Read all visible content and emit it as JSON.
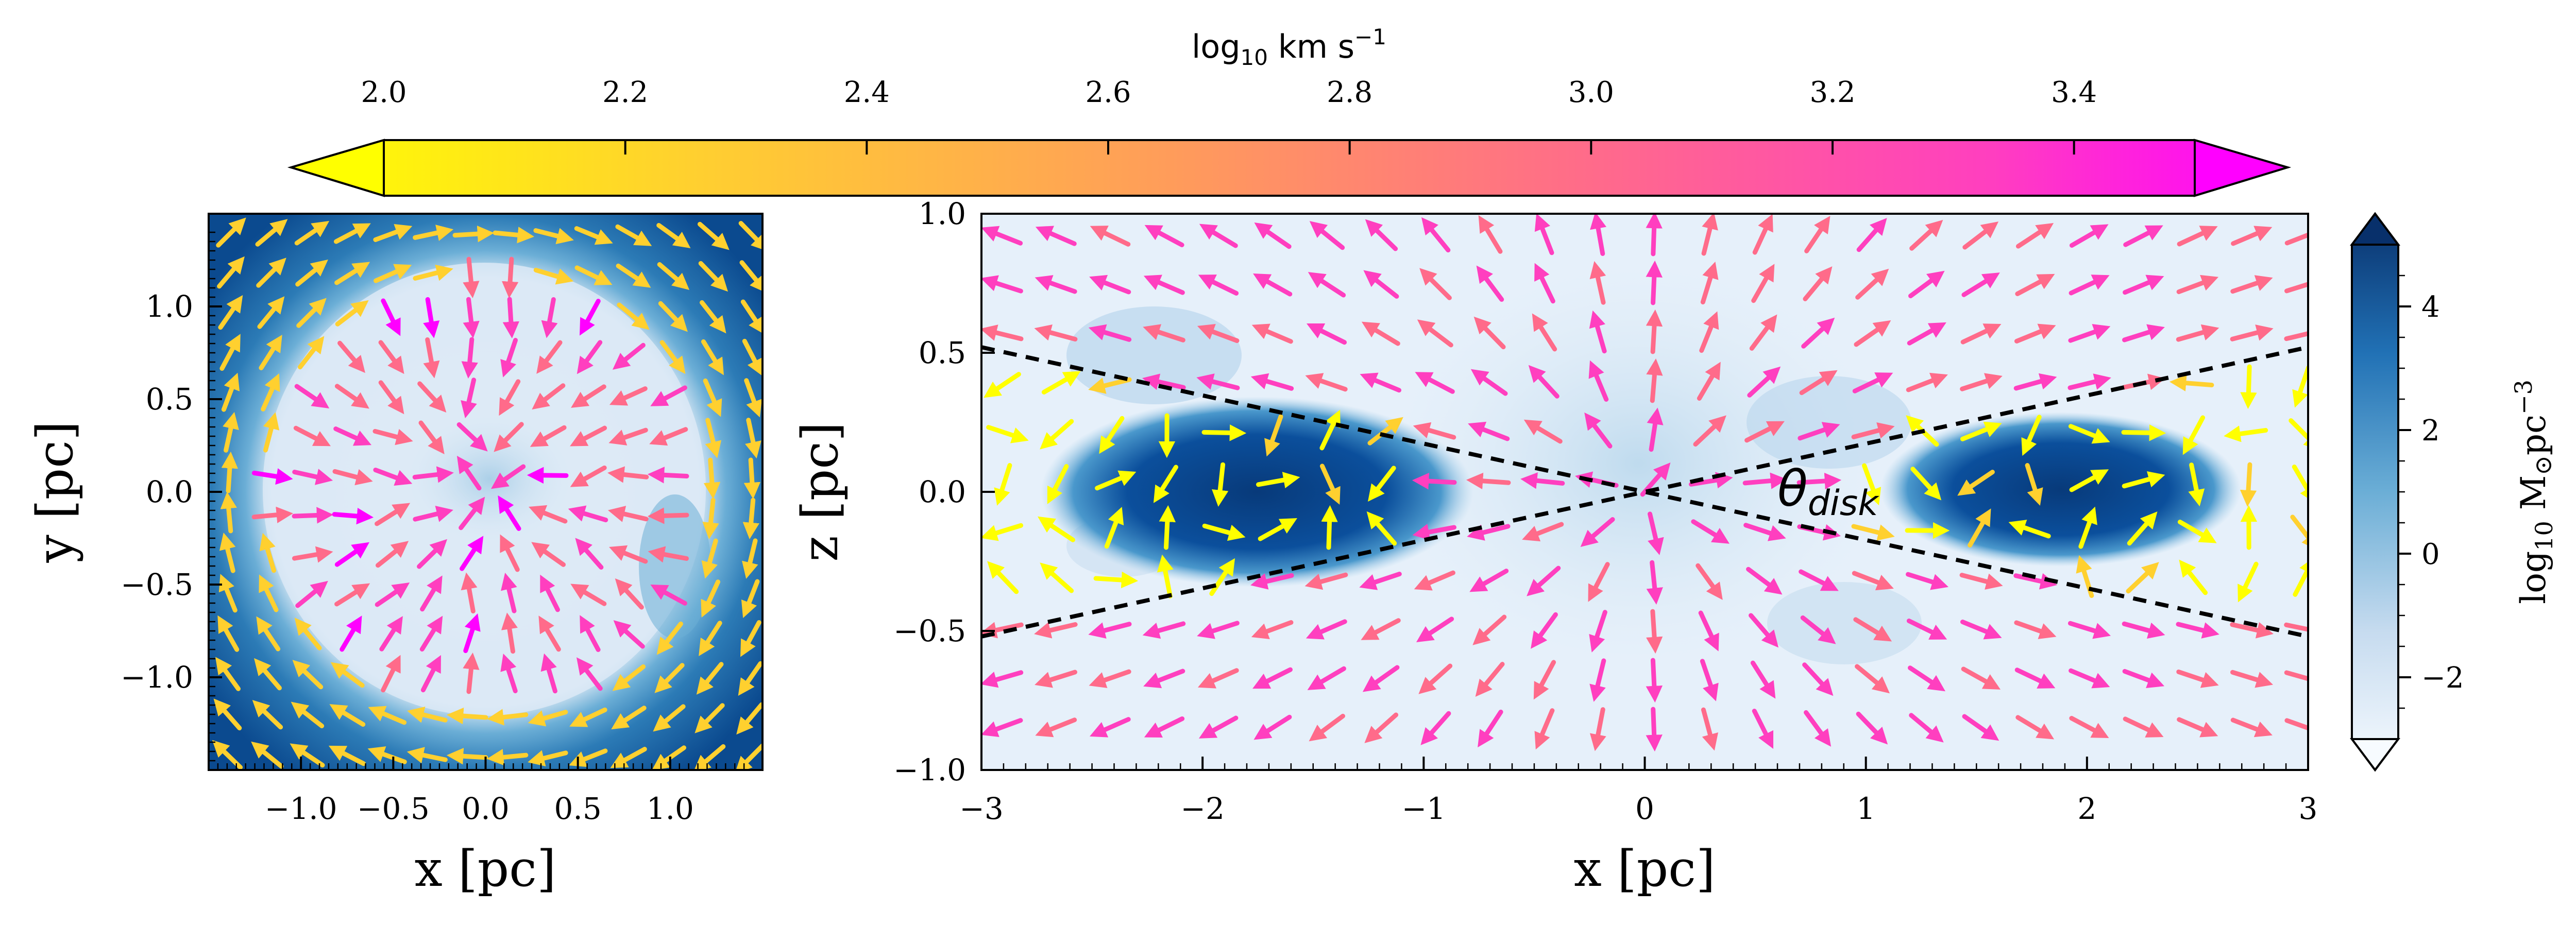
{
  "chart_data": [
    {
      "type": "colorbar",
      "role": "velocity-colorbar",
      "orientation": "horizontal",
      "label_main": "log",
      "label_sub": "10",
      "label_unit": " km s",
      "label_sup": "−1",
      "range": [
        2.0,
        3.5
      ],
      "ticks": [
        "2.0",
        "2.2",
        "2.4",
        "2.6",
        "2.8",
        "3.0",
        "3.2",
        "3.4"
      ],
      "tick_values": [
        2.0,
        2.2,
        2.4,
        2.6,
        2.8,
        3.0,
        3.2,
        3.4
      ],
      "cmap": [
        "#ffff00",
        "#ffd02f",
        "#ff9a5c",
        "#ff6b8a",
        "#ff3fbf",
        "#ff00ff"
      ],
      "extend": "both"
    },
    {
      "type": "quiver-map",
      "role": "face-on-panel",
      "xlabel": "x [pc]",
      "ylabel": "y [pc]",
      "xlim": [
        -1.5,
        1.5
      ],
      "ylim": [
        -1.5,
        1.5
      ],
      "xticks": [
        "−1.0",
        "−0.5",
        "0.0",
        "0.5",
        "1.0"
      ],
      "xtick_values": [
        -1.0,
        -0.5,
        0.0,
        0.5,
        1.0
      ],
      "yticks": [
        "1.0",
        "0.5",
        "0.0",
        "−0.5",
        "−1.0"
      ],
      "ytick_values": [
        1.0,
        0.5,
        0.0,
        -0.5,
        -1.0
      ]
    },
    {
      "type": "quiver-map",
      "role": "edge-on-panel",
      "xlabel": "x [pc]",
      "ylabel": "z [pc]",
      "xlim": [
        -3,
        3
      ],
      "ylim": [
        -1,
        1
      ],
      "xticks": [
        "−3",
        "−2",
        "−1",
        "0",
        "1",
        "2",
        "3"
      ],
      "xtick_values": [
        -3,
        -2,
        -1,
        0,
        1,
        2,
        3
      ],
      "yticks": [
        "1.0",
        "0.5",
        "0.0",
        "−0.5",
        "−1.0"
      ],
      "ytick_values": [
        1.0,
        0.5,
        0.0,
        -0.5,
        -1.0
      ],
      "annotation_main": "θ",
      "annotation_sub": "disk",
      "disk_opening_lines": [
        {
          "x": [
            -3,
            3
          ],
          "y": [
            0.52,
            -0.52
          ]
        },
        {
          "x": [
            -3,
            3
          ],
          "y": [
            -0.52,
            0.52
          ]
        }
      ]
    },
    {
      "type": "colorbar",
      "role": "density-colorbar",
      "orientation": "vertical",
      "label_main": "log",
      "label_sub": "10",
      "label_unit": " M",
      "label_sun": "⊙",
      "label_pc": "pc",
      "label_sup": "−3",
      "range": [
        -3,
        5
      ],
      "ticks": [
        "4",
        "2",
        "0",
        "−2"
      ],
      "tick_values": [
        4,
        2,
        0,
        -2
      ],
      "cmap": [
        "#f7fbff",
        "#c6dbef",
        "#6baed6",
        "#2171b5",
        "#08306b"
      ],
      "extend": "both"
    }
  ]
}
